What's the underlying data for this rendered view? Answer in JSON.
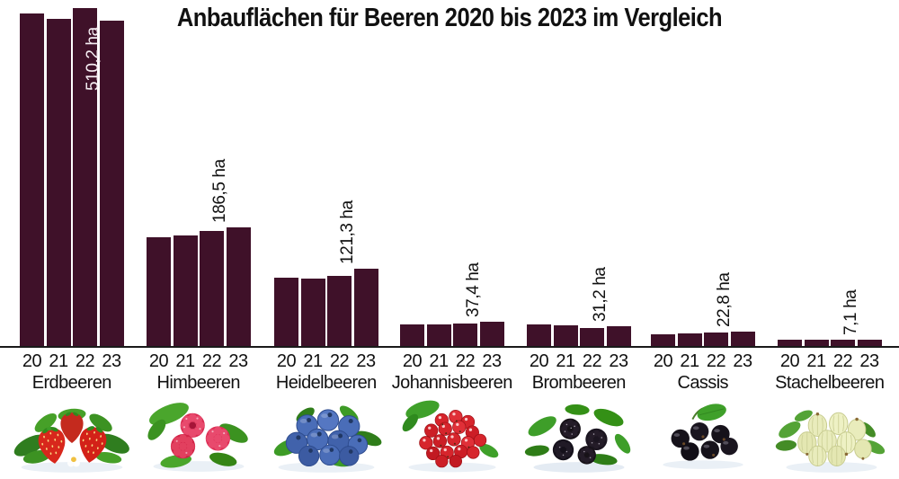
{
  "title": "Anbauflächen für Beeren 2020 bis 2023 im Vergleich",
  "colors": {
    "bar": "#3f1129",
    "axis_line": "#1a1a1a",
    "text": "#111111",
    "value_label_inside": "#f5edf2",
    "value_label_outside": "#111111"
  },
  "chart_data": {
    "type": "bar",
    "title": "Anbauflächen für Beeren 2020 bis 2023 im Vergleich",
    "unit": "ha",
    "years": [
      "20",
      "21",
      "22",
      "23"
    ],
    "ylim": [
      0,
      540
    ],
    "grid": false,
    "legend": "none",
    "values_estimated_except_2023": true,
    "groups": [
      {
        "name": "Erdbeeren",
        "image": "strawberries",
        "values_ha": [
          521,
          513,
          530,
          510.2
        ],
        "labeled_value": "510,2 ha",
        "label_placement": "inside"
      },
      {
        "name": "Himbeeren",
        "image": "raspberries",
        "values_ha": [
          171,
          173.5,
          180.5,
          186.5
        ],
        "labeled_value": "186,5 ha",
        "label_placement": "above"
      },
      {
        "name": "Heidelbeeren",
        "image": "blueberries",
        "values_ha": [
          107,
          105,
          110,
          121.3
        ],
        "labeled_value": "121,3 ha",
        "label_placement": "above"
      },
      {
        "name": "Johannisbeeren",
        "image": "redcurrants",
        "values_ha": [
          34,
          34.5,
          35.5,
          37.4
        ],
        "labeled_value": "37,4 ha",
        "label_placement": "above"
      },
      {
        "name": "Brombeeren",
        "image": "blackberries",
        "values_ha": [
          34,
          32.5,
          28.5,
          31.2
        ],
        "labeled_value": "31,2 ha",
        "label_placement": "above"
      },
      {
        "name": "Cassis",
        "image": "blackcurrants",
        "values_ha": [
          18.5,
          20,
          21.5,
          22.8
        ],
        "labeled_value": "22,8 ha",
        "label_placement": "above"
      },
      {
        "name": "Stachelbeeren",
        "image": "gooseberries",
        "values_ha": [
          7,
          7,
          7,
          7.1
        ],
        "labeled_value": "7,1 ha",
        "label_placement": "above"
      }
    ]
  }
}
